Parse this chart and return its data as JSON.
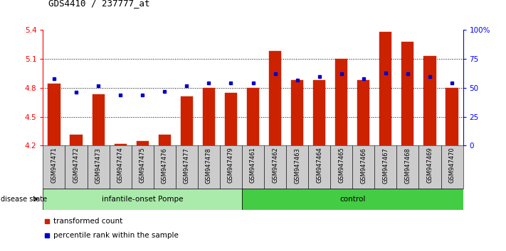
{
  "title": "GDS4410 / 237777_at",
  "samples": [
    "GSM947471",
    "GSM947472",
    "GSM947473",
    "GSM947474",
    "GSM947475",
    "GSM947476",
    "GSM947477",
    "GSM947478",
    "GSM947479",
    "GSM947461",
    "GSM947462",
    "GSM947463",
    "GSM947464",
    "GSM947465",
    "GSM947466",
    "GSM947467",
    "GSM947468",
    "GSM947469",
    "GSM947470"
  ],
  "red_values": [
    4.84,
    4.31,
    4.73,
    4.22,
    4.25,
    4.31,
    4.71,
    4.8,
    4.75,
    4.8,
    5.18,
    4.88,
    4.88,
    5.1,
    4.88,
    5.38,
    5.28,
    5.13,
    4.8
  ],
  "blue_pct": [
    58,
    46,
    52,
    44,
    44,
    47,
    52,
    54,
    54,
    54,
    62,
    57,
    60,
    62,
    58,
    63,
    62,
    60,
    54
  ],
  "ylim_left": [
    4.2,
    5.4
  ],
  "ylim_right": [
    0,
    100
  ],
  "yticks_left": [
    4.2,
    4.5,
    4.8,
    5.1,
    5.4
  ],
  "yticks_right": [
    0,
    25,
    50,
    75,
    100
  ],
  "ytick_labels_right": [
    "0",
    "25",
    "50",
    "75",
    "100%"
  ],
  "hlines": [
    4.5,
    4.8,
    5.1
  ],
  "bar_color": "#cc2200",
  "marker_color": "#0000cc",
  "group1_label": "infantile-onset Pompe",
  "group1_color": "#aaeaaa",
  "group2_label": "control",
  "group2_color": "#44cc44",
  "disease_state_label": "disease state",
  "group1_count": 9,
  "group2_count": 10,
  "legend1": "transformed count",
  "legend2": "percentile rank within the sample",
  "bar_width": 0.55,
  "base_value": 4.2,
  "xtick_bg": "#cccccc"
}
